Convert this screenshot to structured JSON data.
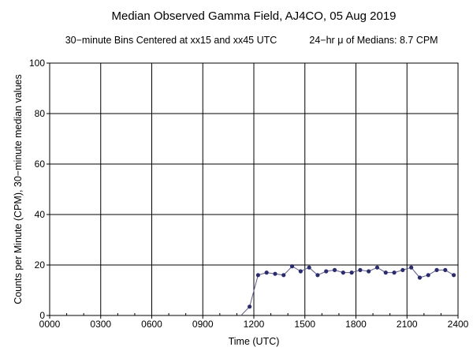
{
  "chart_data": {
    "type": "line",
    "title": "Median Observed Gamma Field, AJ4CO, 05 Aug 2019",
    "subtitle_left": "30−minute Bins Centered at xx15 and xx45 UTC",
    "subtitle_right": "24−hr μ of Medians: 8.7 CPM",
    "xlabel": "Time (UTC)",
    "ylabel": "Counts per Minute (CPM), 30−minute median values",
    "xlim": [
      0,
      24
    ],
    "ylim": [
      0,
      100
    ],
    "grid": true,
    "x_ticks": [
      {
        "value": 0,
        "label": "0000"
      },
      {
        "value": 3,
        "label": "0300"
      },
      {
        "value": 6,
        "label": "0600"
      },
      {
        "value": 9,
        "label": "0900"
      },
      {
        "value": 12,
        "label": "1200"
      },
      {
        "value": 15,
        "label": "1500"
      },
      {
        "value": 18,
        "label": "1800"
      },
      {
        "value": 21,
        "label": "2100"
      },
      {
        "value": 24,
        "label": "2400"
      }
    ],
    "y_ticks": [
      {
        "value": 0,
        "label": "0"
      },
      {
        "value": 20,
        "label": "20"
      },
      {
        "value": 40,
        "label": "40"
      },
      {
        "value": 60,
        "label": "60"
      },
      {
        "value": 80,
        "label": "80"
      },
      {
        "value": 100,
        "label": "100"
      }
    ],
    "line_color": "#5a5a9a",
    "marker_color": "#2a2a7a",
    "series": [
      {
        "x": [
          11.75,
          12.25,
          12.75,
          13.25,
          13.75,
          14.25,
          14.75,
          15.25,
          15.75,
          16.25,
          16.75,
          17.25,
          17.75,
          18.25,
          18.75,
          19.25,
          19.75,
          20.25,
          20.75,
          21.25,
          21.75,
          22.25,
          22.75,
          23.25,
          23.75
        ],
        "y": [
          3.5,
          16,
          17,
          16.5,
          16,
          19.5,
          17.5,
          19,
          16,
          17.5,
          18,
          17,
          17,
          18,
          17.5,
          19,
          17,
          17,
          18,
          19,
          15,
          16,
          18,
          18,
          16
        ]
      }
    ]
  }
}
